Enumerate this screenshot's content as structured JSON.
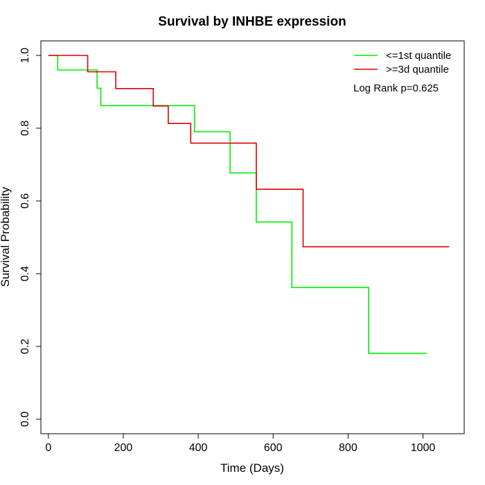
{
  "chart_data": {
    "type": "line",
    "title": "Survival by INHBE expression",
    "xlabel": "Time (Days)",
    "ylabel": "Survival Probability",
    "xlim": [
      -20,
      1110
    ],
    "ylim": [
      -0.04,
      1.04
    ],
    "xticks": [
      0,
      200,
      400,
      600,
      800,
      1000
    ],
    "yticks": [
      0.0,
      0.2,
      0.4,
      0.6,
      0.8,
      1.0
    ],
    "xtick_labels": [
      "0",
      "200",
      "400",
      "600",
      "800",
      "1000"
    ],
    "ytick_labels": [
      "0.0",
      "0.2",
      "0.4",
      "0.6",
      "0.8",
      "1.0"
    ],
    "grid": false,
    "legend_position": "top-right",
    "annotation": "Log Rank p=0.625",
    "series": [
      {
        "name": "<=1st quantile",
        "color": "#00ee00",
        "step": true,
        "x": [
          0,
          25,
          130,
          140,
          390,
          485,
          555,
          650,
          855,
          1010
        ],
        "y": [
          1.0,
          0.96,
          0.91,
          0.862,
          0.79,
          0.677,
          0.542,
          0.362,
          0.181,
          0.181
        ]
      },
      {
        "name": ">=3d quantile",
        "color": "#dd0000",
        "step": true,
        "x": [
          0,
          105,
          180,
          280,
          320,
          380,
          555,
          680,
          1070
        ],
        "y": [
          1.0,
          0.955,
          0.909,
          0.861,
          0.813,
          0.759,
          0.632,
          0.474,
          0.474
        ]
      }
    ]
  }
}
